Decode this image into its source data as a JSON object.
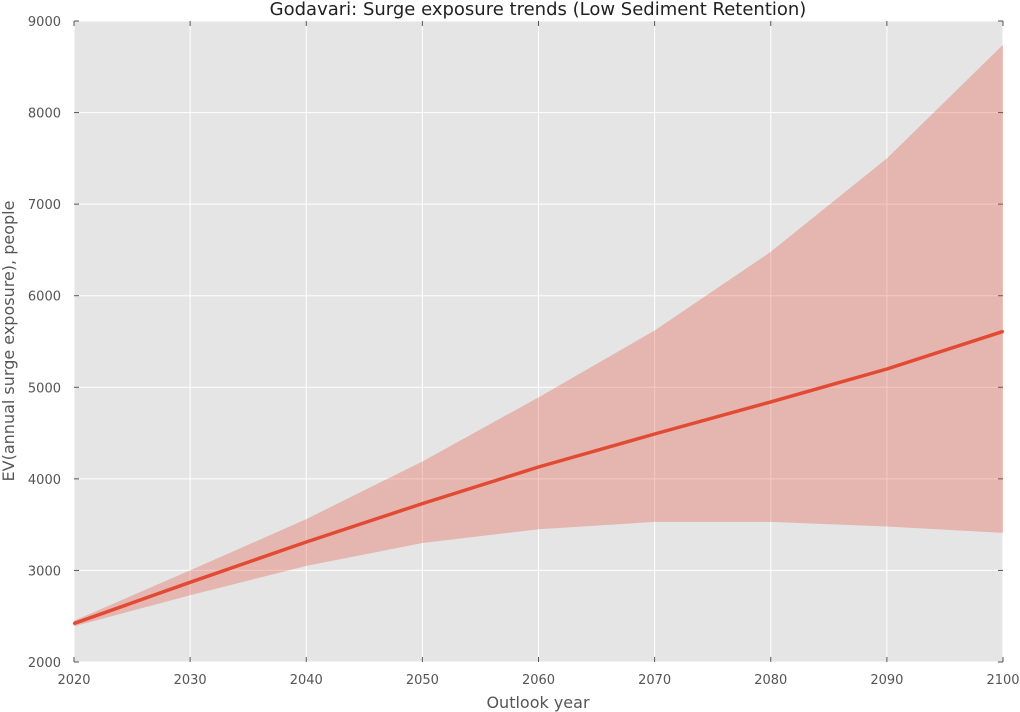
{
  "chart_data": {
    "type": "line",
    "title": "Godavari: Surge exposure trends (Low Sediment Retention)",
    "xlabel": "Outlook year",
    "ylabel": "EV(annual surge exposure), people",
    "xlim": [
      2020,
      2100
    ],
    "ylim": [
      2000,
      9000
    ],
    "xticks": [
      2020,
      2030,
      2040,
      2050,
      2060,
      2070,
      2080,
      2090,
      2100
    ],
    "yticks": [
      2000,
      3000,
      4000,
      5000,
      6000,
      7000,
      8000,
      9000
    ],
    "grid": true,
    "x": [
      2020,
      2030,
      2040,
      2050,
      2060,
      2070,
      2080,
      2090,
      2100
    ],
    "series": [
      {
        "values": [
          2420,
          2870,
          3310,
          3730,
          4130,
          4490,
          4840,
          5200,
          5610
        ],
        "lower": [
          2390,
          2730,
          3050,
          3300,
          3450,
          3530,
          3530,
          3480,
          3410
        ],
        "upper": [
          2450,
          3000,
          3560,
          4190,
          4890,
          5620,
          6480,
          7500,
          8740
        ]
      }
    ],
    "colors": {
      "line": "#E24A33",
      "band": "#E24A33",
      "plot_background": "#E5E5E5",
      "grid": "#FFFFFF"
    }
  }
}
